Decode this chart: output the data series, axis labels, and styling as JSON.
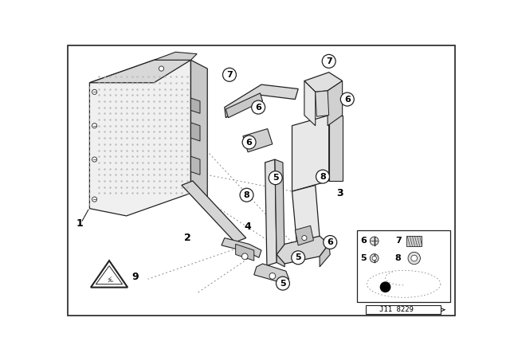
{
  "bg_color": "#ffffff",
  "border_color": "#000000",
  "line_color": "#222222",
  "fill_light": "#e8e8e8",
  "fill_mid": "#cccccc",
  "fill_dark": "#aaaaaa",
  "figsize": [
    6.4,
    4.48
  ],
  "dpi": 100,
  "diagram_id": "J11 8229"
}
